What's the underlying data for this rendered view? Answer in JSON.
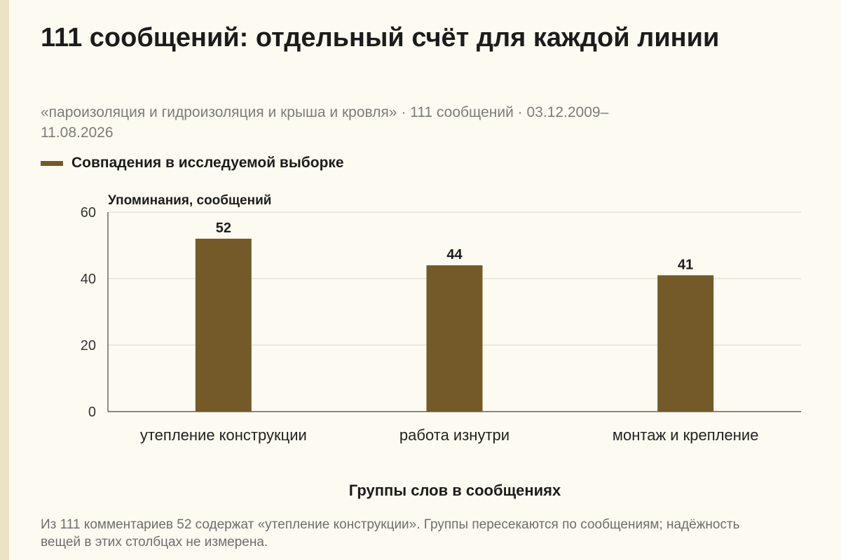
{
  "header": {
    "title": "111 сообщений: отдельный счёт для каждой линии",
    "subtitle": "«пароизоляция и гидроизоляция и крыша и кровля» · 111 сообщений · 03.12.2009–11.08.2026"
  },
  "legend": {
    "label": "Совпадения в исследуемой выборке"
  },
  "colors": {
    "bar": "#735a28",
    "background": "#fdfbf1",
    "accent_stripe": "#ece3c4"
  },
  "chart_data": {
    "type": "bar",
    "categories": [
      "утепление конструкции",
      "работа изнутри",
      "монтаж и крепление"
    ],
    "series": [
      {
        "name": "Совпадения в исследуемой выборке",
        "values": [
          52,
          44,
          41
        ]
      }
    ],
    "data_labels": [
      "52",
      "44",
      "41"
    ],
    "ylabel": "Упоминания, сообщений",
    "xlabel": "Группы слов в сообщениях",
    "ylim": [
      0,
      60
    ],
    "yticks": [
      0,
      20,
      40,
      60
    ],
    "grid": true,
    "legend_position": "top-left"
  },
  "footnote": {
    "text": "Из 111 комментариев 52 содержат «утепление конструкции». Группы пересекаются по сообщениям; надёжность вещей в этих столбцах не измерена."
  }
}
